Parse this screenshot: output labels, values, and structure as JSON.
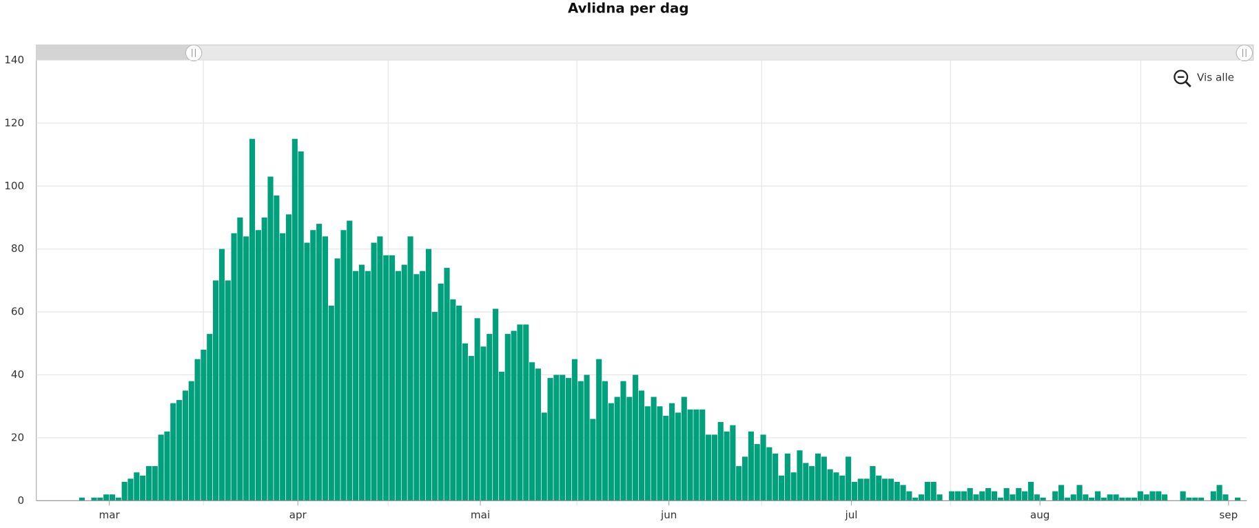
{
  "chart_data": {
    "type": "bar",
    "title": "Avlidna per dag",
    "categories": [
      null,
      null,
      null,
      null,
      null,
      null,
      null,
      null,
      null,
      null,
      null,
      null,
      "mar",
      null,
      null,
      null,
      null,
      null,
      null,
      null,
      null,
      null,
      null,
      null,
      null,
      null,
      null,
      null,
      null,
      null,
      null,
      null,
      null,
      null,
      null,
      null,
      null,
      null,
      null,
      null,
      null,
      null,
      null,
      "apr",
      null,
      null,
      null,
      null,
      null,
      null,
      null,
      null,
      null,
      null,
      null,
      null,
      null,
      null,
      null,
      null,
      null,
      null,
      null,
      null,
      null,
      null,
      null,
      null,
      null,
      null,
      null,
      null,
      null,
      "mai",
      null,
      null,
      null,
      null,
      null,
      null,
      null,
      null,
      null,
      null,
      null,
      null,
      null,
      null,
      null,
      null,
      null,
      null,
      null,
      null,
      null,
      null,
      null,
      null,
      null,
      null,
      null,
      null,
      null,
      null,
      "jun",
      null,
      null,
      null,
      null,
      null,
      null,
      null,
      null,
      null,
      null,
      null,
      null,
      null,
      null,
      null,
      null,
      null,
      null,
      null,
      null,
      null,
      null,
      null,
      null,
      null,
      null,
      null,
      null,
      null,
      "jul",
      null,
      null,
      null,
      null,
      null,
      null,
      null,
      null,
      null,
      null,
      null,
      null,
      null,
      null,
      null,
      null,
      null,
      null,
      null,
      null,
      null,
      null,
      null,
      null,
      null,
      null,
      null,
      null,
      null,
      null,
      "aug",
      null,
      null,
      null,
      null,
      null,
      null,
      null,
      null,
      null,
      null,
      null,
      null,
      null,
      null,
      null,
      null,
      null,
      null,
      null,
      null,
      null,
      null,
      null,
      null,
      null,
      null,
      null,
      null,
      null,
      null,
      "sep",
      null,
      null
    ],
    "values": [
      0,
      0,
      0,
      0,
      0,
      0,
      0,
      1,
      0,
      1,
      1,
      2,
      2,
      1,
      6,
      7,
      9,
      8,
      11,
      11,
      21,
      22,
      31,
      32,
      35,
      38,
      45,
      48,
      53,
      70,
      80,
      70,
      85,
      90,
      84,
      115,
      86,
      90,
      103,
      97,
      85,
      91,
      115,
      111,
      82,
      86,
      88,
      84,
      62,
      77,
      86,
      89,
      73,
      75,
      73,
      82,
      84,
      78,
      78,
      73,
      75,
      84,
      72,
      73,
      80,
      60,
      69,
      74,
      64,
      62,
      50,
      46,
      58,
      49,
      53,
      61,
      41,
      53,
      54,
      56,
      56,
      44,
      42,
      28,
      39,
      40,
      40,
      39,
      45,
      38,
      40,
      26,
      45,
      38,
      31,
      33,
      38,
      33,
      40,
      35,
      30,
      33,
      30,
      27,
      31,
      28,
      33,
      29,
      29,
      29,
      21,
      21,
      25,
      22,
      24,
      11,
      14,
      22,
      18,
      21,
      17,
      15,
      8,
      15,
      9,
      16,
      12,
      11,
      15,
      14,
      10,
      9,
      8,
      14,
      6,
      7,
      7,
      11,
      8,
      7,
      7,
      6,
      5,
      3,
      1,
      2,
      6,
      6,
      2,
      0,
      3,
      3,
      3,
      4,
      2,
      3,
      4,
      3,
      1,
      4,
      2,
      4,
      3,
      6,
      2,
      1,
      0,
      3,
      5,
      1,
      2,
      5,
      2,
      1,
      3,
      1,
      2,
      2,
      1,
      1,
      1,
      3,
      2,
      3,
      3,
      2,
      0,
      0,
      3,
      1,
      1,
      1,
      0,
      3,
      5,
      2,
      0,
      1,
      0
    ],
    "color": "#00a07d",
    "ylim": [
      0,
      140
    ],
    "yticks": [
      0,
      20,
      40,
      60,
      80,
      100,
      120,
      140
    ],
    "grid": true
  },
  "controls": {
    "reset_zoom": "Vis alle"
  }
}
